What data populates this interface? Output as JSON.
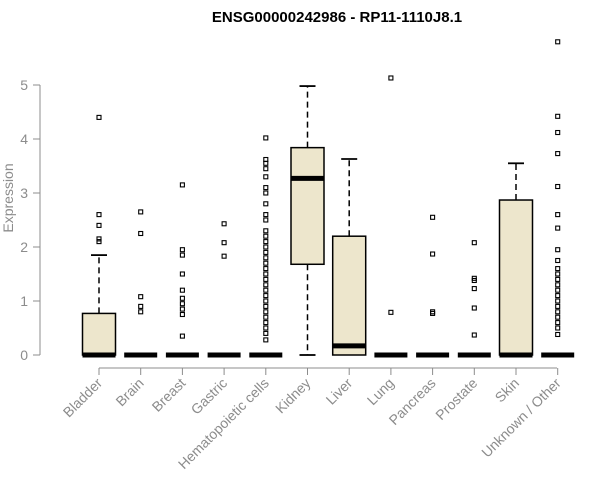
{
  "chart_data": {
    "type": "box",
    "title": "ENSG00000242986 - RP11-1110J8.1",
    "ylabel": "Expression",
    "xlabel": "",
    "ylim": [
      0,
      5.85
    ],
    "yticks": [
      0,
      1,
      2,
      3,
      4,
      5
    ],
    "box_fill": "#ede6cc",
    "categories": [
      "Bladder",
      "Brain",
      "Breast",
      "Gastric",
      "Hematopoietic cells",
      "Kidney",
      "Liver",
      "Lung",
      "Pancreas",
      "Prostate",
      "Skin",
      "Unknown / Other"
    ],
    "boxes": [
      {
        "category": "Bladder",
        "min": 0,
        "q1": 0,
        "median": 0,
        "q3": 0.77,
        "max": 1.85,
        "outliers": [
          2.1,
          2.15,
          2.4,
          2.6,
          4.4
        ]
      },
      {
        "category": "Brain",
        "min": 0,
        "q1": 0,
        "median": 0,
        "q3": 0,
        "max": 0,
        "outliers": [
          0.8,
          0.9,
          1.08,
          2.25,
          2.65
        ]
      },
      {
        "category": "Breast",
        "min": 0,
        "q1": 0,
        "median": 0,
        "q3": 0,
        "max": 0,
        "outliers": [
          0.35,
          0.75,
          0.85,
          0.95,
          1.05,
          1.2,
          1.5,
          1.85,
          1.95,
          3.15
        ]
      },
      {
        "category": "Gastric",
        "min": 0,
        "q1": 0,
        "median": 0,
        "q3": 0,
        "max": 0,
        "outliers": [
          1.83,
          2.08,
          2.43
        ]
      },
      {
        "category": "Hematopoietic cells",
        "min": 0,
        "q1": 0,
        "median": 0,
        "q3": 0,
        "max": 0,
        "outliers": [
          0.28,
          0.4,
          0.5,
          0.6,
          0.7,
          0.8,
          0.9,
          1.0,
          1.1,
          1.2,
          1.3,
          1.4,
          1.5,
          1.6,
          1.7,
          1.8,
          1.9,
          2.0,
          2.1,
          2.2,
          2.3,
          2.5,
          2.6,
          2.8,
          3.0,
          3.1,
          3.3,
          3.45,
          3.55,
          3.62,
          4.02
        ]
      },
      {
        "category": "Kidney",
        "min": 0,
        "q1": 1.68,
        "median": 3.27,
        "q3": 3.84,
        "max": 4.98,
        "outliers": []
      },
      {
        "category": "Liver",
        "min": 0,
        "q1": 0,
        "median": 0.17,
        "q3": 2.2,
        "max": 3.63,
        "outliers": []
      },
      {
        "category": "Lung",
        "min": 0,
        "q1": 0,
        "median": 0,
        "q3": 0,
        "max": 0,
        "outliers": [
          0.79,
          5.13
        ]
      },
      {
        "category": "Pancreas",
        "min": 0,
        "q1": 0,
        "median": 0,
        "q3": 0,
        "max": 0,
        "outliers": [
          0.77,
          0.8,
          1.87,
          2.55
        ]
      },
      {
        "category": "Prostate",
        "min": 0,
        "q1": 0,
        "median": 0,
        "q3": 0,
        "max": 0,
        "outliers": [
          0.37,
          0.87,
          1.23,
          1.38,
          1.42,
          2.08
        ]
      },
      {
        "category": "Skin",
        "min": 0,
        "q1": 0,
        "median": 0,
        "q3": 2.87,
        "max": 3.55,
        "outliers": []
      },
      {
        "category": "Unknown / Other",
        "min": 0,
        "q1": 0,
        "median": 0,
        "q3": 0,
        "max": 0,
        "outliers": [
          0.38,
          0.5,
          0.6,
          0.7,
          0.8,
          0.9,
          1.0,
          1.1,
          1.2,
          1.3,
          1.4,
          1.5,
          1.6,
          1.75,
          1.95,
          2.35,
          2.6,
          3.12,
          3.73,
          4.12,
          4.42,
          5.8
        ]
      }
    ]
  }
}
